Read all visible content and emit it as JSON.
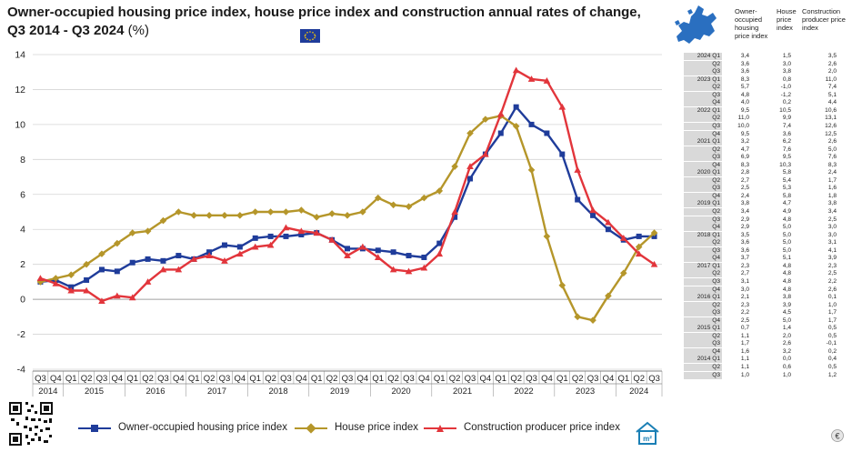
{
  "title": "Owner-occupied housing price index, house price index and construction annual rates of change, Q3 2014 - Q3 2024",
  "title_unit": "(%)",
  "colors": {
    "owner": "#1f3c9a",
    "house": "#b5962a",
    "construction": "#e2353b",
    "grid": "#d4d4d4",
    "table_label_bg": "#d9d9d9"
  },
  "side_table": {
    "headers": {
      "owner": "Owner-occupied housing price index",
      "house": "House price index",
      "construction": "Construction producer price index"
    },
    "rows": [
      {
        "label": "2024 Q1",
        "owner": "3,4",
        "house": "1,5",
        "construction": "3,5"
      },
      {
        "label": "Q2",
        "owner": "3,6",
        "house": "3,0",
        "construction": "2,6"
      },
      {
        "label": "Q3",
        "owner": "3,6",
        "house": "3,8",
        "construction": "2,0"
      },
      {
        "label": "2023 Q1",
        "owner": "8,3",
        "house": "0,8",
        "construction": "11,0"
      },
      {
        "label": "Q2",
        "owner": "5,7",
        "house": "-1,0",
        "construction": "7,4"
      },
      {
        "label": "Q3",
        "owner": "4,8",
        "house": "-1,2",
        "construction": "5,1"
      },
      {
        "label": "Q4",
        "owner": "4,0",
        "house": "0,2",
        "construction": "4,4"
      },
      {
        "label": "2022 Q1",
        "owner": "9,5",
        "house": "10,5",
        "construction": "10,6"
      },
      {
        "label": "Q2",
        "owner": "11,0",
        "house": "9,9",
        "construction": "13,1"
      },
      {
        "label": "Q3",
        "owner": "10,0",
        "house": "7,4",
        "construction": "12,6"
      },
      {
        "label": "Q4",
        "owner": "9,5",
        "house": "3,6",
        "construction": "12,5"
      },
      {
        "label": "2021 Q1",
        "owner": "3,2",
        "house": "6,2",
        "construction": "2,6"
      },
      {
        "label": "Q2",
        "owner": "4,7",
        "house": "7,6",
        "construction": "5,0"
      },
      {
        "label": "Q3",
        "owner": "6,9",
        "house": "9,5",
        "construction": "7,6"
      },
      {
        "label": "Q4",
        "owner": "8,3",
        "house": "10,3",
        "construction": "8,3"
      },
      {
        "label": "2020 Q1",
        "owner": "2,8",
        "house": "5,8",
        "construction": "2,4"
      },
      {
        "label": "Q2",
        "owner": "2,7",
        "house": "5,4",
        "construction": "1,7"
      },
      {
        "label": "Q3",
        "owner": "2,5",
        "house": "5,3",
        "construction": "1,6"
      },
      {
        "label": "Q4",
        "owner": "2,4",
        "house": "5,8",
        "construction": "1,8"
      },
      {
        "label": "2019 Q1",
        "owner": "3,8",
        "house": "4,7",
        "construction": "3,8"
      },
      {
        "label": "Q2",
        "owner": "3,4",
        "house": "4,9",
        "construction": "3,4"
      },
      {
        "label": "Q3",
        "owner": "2,9",
        "house": "4,8",
        "construction": "2,5"
      },
      {
        "label": "Q4",
        "owner": "2,9",
        "house": "5,0",
        "construction": "3,0"
      },
      {
        "label": "2018 Q1",
        "owner": "3,5",
        "house": "5,0",
        "construction": "3,0"
      },
      {
        "label": "Q2",
        "owner": "3,6",
        "house": "5,0",
        "construction": "3,1"
      },
      {
        "label": "Q3",
        "owner": "3,6",
        "house": "5,0",
        "construction": "4,1"
      },
      {
        "label": "Q4",
        "owner": "3,7",
        "house": "5,1",
        "construction": "3,9"
      },
      {
        "label": "2017 Q1",
        "owner": "2,3",
        "house": "4,8",
        "construction": "2,3"
      },
      {
        "label": "Q2",
        "owner": "2,7",
        "house": "4,8",
        "construction": "2,5"
      },
      {
        "label": "Q3",
        "owner": "3,1",
        "house": "4,8",
        "construction": "2,2"
      },
      {
        "label": "Q4",
        "owner": "3,0",
        "house": "4,8",
        "construction": "2,6"
      },
      {
        "label": "2016 Q1",
        "owner": "2,1",
        "house": "3,8",
        "construction": "0,1"
      },
      {
        "label": "Q2",
        "owner": "2,3",
        "house": "3,9",
        "construction": "1,0"
      },
      {
        "label": "Q3",
        "owner": "2,2",
        "house": "4,5",
        "construction": "1,7"
      },
      {
        "label": "Q4",
        "owner": "2,5",
        "house": "5,0",
        "construction": "1,7"
      },
      {
        "label": "2015 Q1",
        "owner": "0,7",
        "house": "1,4",
        "construction": "0,5"
      },
      {
        "label": "Q2",
        "owner": "1,1",
        "house": "2,0",
        "construction": "0,5"
      },
      {
        "label": "Q3",
        "owner": "1,7",
        "house": "2,6",
        "construction": "-0,1"
      },
      {
        "label": "Q4",
        "owner": "1,6",
        "house": "3,2",
        "construction": "0,2"
      },
      {
        "label": "2014 Q1",
        "owner": "1,1",
        "house": "0,0",
        "construction": "0,4"
      },
      {
        "label": "Q2",
        "owner": "1,1",
        "house": "0,6",
        "construction": "0,5"
      },
      {
        "label": "Q3",
        "owner": "1,0",
        "house": "1,0",
        "construction": "1,2"
      }
    ]
  },
  "chart_data": {
    "type": "line",
    "title": "Owner-occupied housing price index, house price index and construction annual rates of change, Q3 2014 - Q3 2024",
    "ylabel": "",
    "xlabel": "",
    "ylim": [
      -4,
      14
    ],
    "yticks": [
      "-4",
      "-2",
      "0",
      "2",
      "4",
      "6",
      "8",
      "10",
      "12",
      "14"
    ],
    "grid": true,
    "legend_position": "bottom",
    "quarters": [
      "Q3",
      "Q4",
      "Q1",
      "Q2",
      "Q3",
      "Q4",
      "Q1",
      "Q2",
      "Q3",
      "Q4",
      "Q1",
      "Q2",
      "Q3",
      "Q4",
      "Q1",
      "Q2",
      "Q3",
      "Q4",
      "Q1",
      "Q2",
      "Q3",
      "Q4",
      "Q1",
      "Q2",
      "Q3",
      "Q4",
      "Q1",
      "Q2",
      "Q3",
      "Q4",
      "Q1",
      "Q2",
      "Q3",
      "Q4",
      "Q1",
      "Q2",
      "Q3",
      "Q4",
      "Q1",
      "Q2",
      "Q3"
    ],
    "years": [
      "2014",
      "2015",
      "2016",
      "2017",
      "2018",
      "2019",
      "2020",
      "2021",
      "2022",
      "2023",
      "2024"
    ],
    "series": [
      {
        "name": "Owner-occupied housing price index",
        "color": "#1f3c9a",
        "marker": "square",
        "values": [
          1.0,
          1.1,
          0.7,
          1.1,
          1.7,
          1.6,
          2.1,
          2.3,
          2.2,
          2.5,
          2.3,
          2.7,
          3.1,
          3.0,
          3.5,
          3.6,
          3.6,
          3.7,
          3.8,
          3.4,
          2.9,
          2.9,
          2.8,
          2.7,
          2.5,
          2.4,
          3.2,
          4.7,
          6.9,
          8.3,
          9.5,
          11.0,
          10.0,
          9.5,
          8.3,
          5.7,
          4.8,
          4.0,
          3.4,
          3.6,
          3.6
        ]
      },
      {
        "name": "House price index",
        "color": "#b5962a",
        "marker": "diamond",
        "values": [
          1.0,
          1.2,
          1.4,
          2.0,
          2.6,
          3.2,
          3.8,
          3.9,
          4.5,
          5.0,
          4.8,
          4.8,
          4.8,
          4.8,
          5.0,
          5.0,
          5.0,
          5.1,
          4.7,
          4.9,
          4.8,
          5.0,
          5.8,
          5.4,
          5.3,
          5.8,
          6.2,
          7.6,
          9.5,
          10.3,
          10.5,
          9.9,
          7.4,
          3.6,
          0.8,
          -1.0,
          -1.2,
          0.2,
          1.5,
          3.0,
          3.8
        ]
      },
      {
        "name": "Construction producer price index",
        "color": "#e2353b",
        "marker": "triangle",
        "values": [
          1.2,
          0.9,
          0.5,
          0.5,
          -0.1,
          0.2,
          0.1,
          1.0,
          1.7,
          1.7,
          2.3,
          2.5,
          2.2,
          2.6,
          3.0,
          3.1,
          4.1,
          3.9,
          3.8,
          3.4,
          2.5,
          3.0,
          2.4,
          1.7,
          1.6,
          1.8,
          2.6,
          5.0,
          7.6,
          8.3,
          10.6,
          13.1,
          12.6,
          12.5,
          11.0,
          7.4,
          5.1,
          4.4,
          3.5,
          2.6,
          2.0
        ]
      }
    ]
  }
}
